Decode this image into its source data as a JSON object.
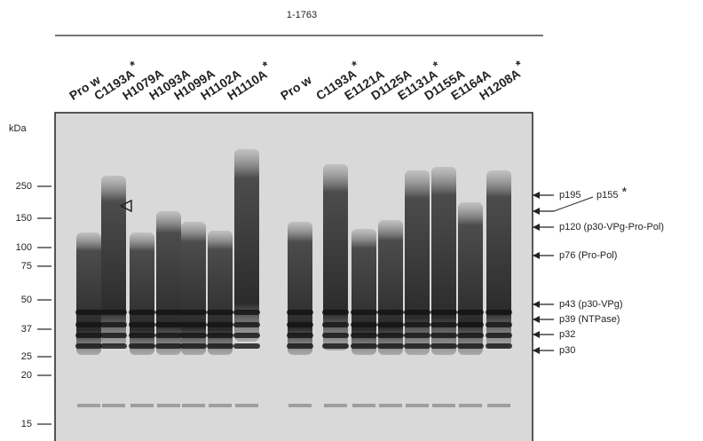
{
  "header": {
    "range": "1-1763"
  },
  "lanes": [
    {
      "label": "Pro w"
    },
    {
      "label": "C1193A",
      "mark": "*"
    },
    {
      "label": "H1079A"
    },
    {
      "label": "H1093A"
    },
    {
      "label": "H1099A"
    },
    {
      "label": "H1102A"
    },
    {
      "label": "H1110A",
      "mark": "*"
    },
    {
      "label": "Pro w"
    },
    {
      "label": "C1193A",
      "mark": "*"
    },
    {
      "label": "E1121A"
    },
    {
      "label": "D1125A"
    },
    {
      "label": "E1131A",
      "mark": "*"
    },
    {
      "label": "D1155A"
    },
    {
      "label": "E1164A"
    },
    {
      "label": "H1208A",
      "mark": "*"
    }
  ],
  "markers": {
    "unit": "kDa",
    "labels": [
      "250",
      "150",
      "100",
      "75",
      "50",
      "37",
      "25",
      "20",
      "15"
    ]
  },
  "bands": [
    {
      "label": "p195"
    },
    {
      "label": "p155",
      "mark": "*"
    },
    {
      "label": "p120 (p30-VPg-Pro-Pol)"
    },
    {
      "label": "p76 (Pro-Pol)"
    },
    {
      "label": "p43 (p30-VPg)"
    },
    {
      "label": "p39 (NTPase)"
    },
    {
      "label": "p32"
    },
    {
      "label": "p30"
    }
  ]
}
